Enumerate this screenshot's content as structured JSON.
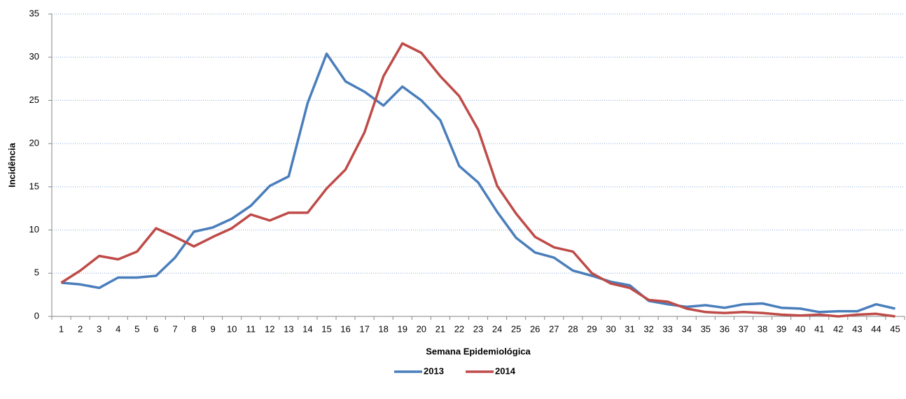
{
  "chart_data": {
    "type": "line",
    "x_label": "Semana Epidemiológica",
    "y_label": "Incidência",
    "categories": [
      "1",
      "2",
      "3",
      "4",
      "5",
      "6",
      "7",
      "8",
      "9",
      "10",
      "11",
      "12",
      "13",
      "14",
      "15",
      "16",
      "17",
      "18",
      "19",
      "20",
      "21",
      "22",
      "23",
      "24",
      "25",
      "26",
      "27",
      "28",
      "29",
      "30",
      "31",
      "32",
      "33",
      "34",
      "35",
      "36",
      "37",
      "38",
      "39",
      "40",
      "41",
      "42",
      "43",
      "44",
      "45"
    ],
    "series": [
      {
        "name": "2013",
        "color": "#4a7ebb",
        "values": [
          3.9,
          3.7,
          3.3,
          4.5,
          4.5,
          4.7,
          6.8,
          9.8,
          10.3,
          11.3,
          12.8,
          15.1,
          16.2,
          24.7,
          30.4,
          27.2,
          26.0,
          24.4,
          26.6,
          25.0,
          22.7,
          17.4,
          15.5,
          12.1,
          9.1,
          7.4,
          6.8,
          5.3,
          4.7,
          4.0,
          3.6,
          1.8,
          1.4,
          1.1,
          1.3,
          1.0,
          1.4,
          1.5,
          1.0,
          0.9,
          0.5,
          0.6,
          0.6,
          1.4,
          0.9
        ]
      },
      {
        "name": "2014",
        "color": "#be4b48",
        "values": [
          3.9,
          5.3,
          7.0,
          6.6,
          7.5,
          10.2,
          9.2,
          8.1,
          9.2,
          10.2,
          11.8,
          11.1,
          12.0,
          12.0,
          14.8,
          17.0,
          21.3,
          27.8,
          31.6,
          30.5,
          27.8,
          25.5,
          21.6,
          15.1,
          11.9,
          9.2,
          8.0,
          7.5,
          5.0,
          3.8,
          3.3,
          1.9,
          1.7,
          0.9,
          0.5,
          0.4,
          0.5,
          0.4,
          0.2,
          0.1,
          0.2,
          0.0,
          0.2,
          0.3,
          0.0
        ]
      }
    ],
    "ylim": [
      0,
      35
    ],
    "yticks": [
      0,
      5,
      10,
      15,
      20,
      25,
      30,
      35
    ],
    "grid": true,
    "legend": "bottom"
  }
}
